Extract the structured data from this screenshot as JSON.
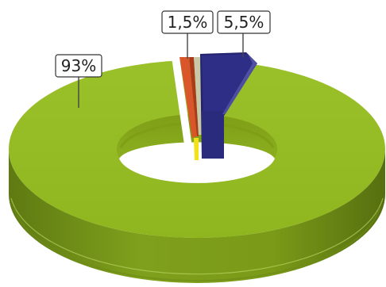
{
  "chart_data": {
    "type": "pie",
    "variant": "3d-donut",
    "slices": [
      {
        "label": "93%",
        "value": 93,
        "color": "#93B822"
      },
      {
        "label": "1,5%",
        "value": 1.5,
        "color": "#D8562A"
      },
      {
        "label": "5,5%",
        "value": 5.5,
        "color": "#2E2E86"
      }
    ],
    "small_slice_colors": [
      "#F2E21A",
      "#C9C9A8"
    ],
    "legend": "none"
  }
}
